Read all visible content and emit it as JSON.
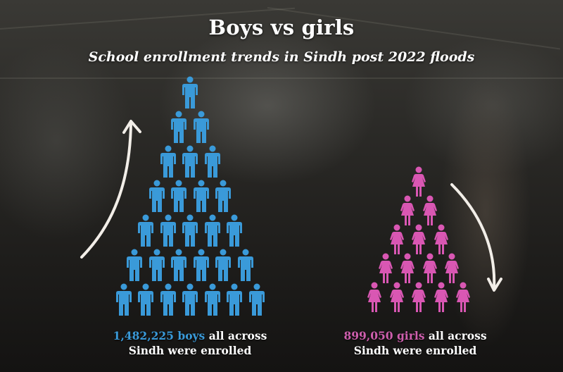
{
  "header": {
    "title": "Boys vs girls",
    "subtitle": "School enrollment trends in Sindh post 2022 floods"
  },
  "boys": {
    "count": "1,482,225",
    "label": "boys",
    "rest_line1": "all across",
    "line2": "Sindh were enrolled",
    "color": "#3a9ad9",
    "icon": "male-person-icon",
    "pyramid_rows": [
      1,
      2,
      3,
      4,
      5,
      6,
      7
    ],
    "trend_arrow": "arrow-up-icon"
  },
  "girls": {
    "count": "899,050",
    "label": "girls",
    "rest_line1": "all across",
    "line2": "Sindh were enrolled",
    "color": "#d957b3",
    "icon": "female-person-icon",
    "pyramid_rows": [
      1,
      2,
      3,
      4,
      5
    ],
    "trend_arrow": "arrow-down-icon"
  },
  "chart_data": {
    "type": "pictogram",
    "title": "Boys vs girls",
    "subtitle": "School enrollment trends in Sindh post 2022 floods",
    "categories": [
      "Boys",
      "Girls"
    ],
    "values": [
      1482225,
      899050
    ],
    "icon_counts": [
      28,
      15
    ],
    "pyramid_rows": [
      [
        1,
        2,
        3,
        4,
        5,
        6,
        7
      ],
      [
        1,
        2,
        3,
        4,
        5
      ]
    ],
    "colors": [
      "#3a9ad9",
      "#d957b3"
    ],
    "trends": [
      "up",
      "down"
    ],
    "annotations": [
      "1,482,225 boys all across Sindh were enrolled",
      "899,050 girls all across Sindh were enrolled"
    ]
  }
}
